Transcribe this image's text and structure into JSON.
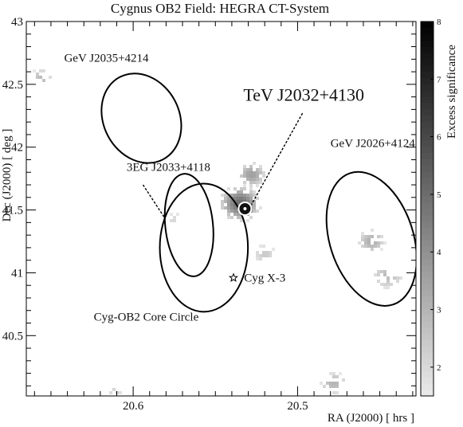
{
  "chart_data": {
    "type": "heatmap",
    "title": "Cygnus OB2 Field: HEGRA CT-System",
    "xlabel": "RA (J2000) [ hrs ]",
    "ylabel": "Dec (J2000) [ deg ]",
    "colorbar_label": "Excess significance",
    "xlim": [
      20.665,
      20.428
    ],
    "ylim": [
      40.02,
      43.0
    ],
    "x_ticks": [
      20.6,
      20.5
    ],
    "x_tick_labels": [
      "20.6",
      "20.5"
    ],
    "y_ticks": [
      40.5,
      41,
      41.5,
      42,
      42.5,
      43
    ],
    "y_tick_labels": [
      "40.5",
      "41",
      "41.5",
      "42",
      "42.5",
      "43"
    ],
    "colorbar_range": [
      1.5,
      8
    ],
    "colorbar_ticks": [
      2,
      3,
      4,
      5,
      6,
      7,
      8
    ],
    "colorbar_tick_labels": [
      "2",
      "3",
      "4",
      "5",
      "6",
      "7",
      "8"
    ],
    "grid": false,
    "colors": {
      "axes": "#000000",
      "background": "#ffffff",
      "ellipse": "#000000"
    },
    "hotspots": [
      {
        "ra": 20.532,
        "dec": 41.51,
        "sigma": 7.5,
        "spread": 0.04
      },
      {
        "ra": 20.535,
        "dec": 41.55,
        "sigma": 5.0,
        "spread": 0.1
      },
      {
        "ra": 20.528,
        "dec": 41.78,
        "sigma": 3.6,
        "spread": 0.08
      },
      {
        "ra": 20.455,
        "dec": 41.25,
        "sigma": 3.2,
        "spread": 0.08
      },
      {
        "ra": 20.445,
        "dec": 40.98,
        "sigma": 2.8,
        "spread": 0.1
      },
      {
        "ra": 20.478,
        "dec": 40.12,
        "sigma": 3.0,
        "spread": 0.08
      },
      {
        "ra": 20.656,
        "dec": 42.55,
        "sigma": 2.8,
        "spread": 0.07
      },
      {
        "ra": 20.575,
        "dec": 41.42,
        "sigma": 2.0,
        "spread": 0.08
      },
      {
        "ra": 20.52,
        "dec": 41.15,
        "sigma": 2.4,
        "spread": 0.08
      },
      {
        "ra": 20.611,
        "dec": 40.05,
        "sigma": 2.3,
        "spread": 0.05
      }
    ],
    "regions": [
      {
        "name": "GeV J2035+4214",
        "ra": 20.595,
        "dec": 42.23,
        "rx": 0.023,
        "ry": 0.37,
        "angle": -28
      },
      {
        "name": "3EG J2033+4118",
        "ra": 20.566,
        "dec": 41.38,
        "rx": 0.0145,
        "ry": 0.41,
        "angle": -6
      },
      {
        "name": "Cyg-OB2 Core Circle",
        "ra": 20.557,
        "dec": 41.2,
        "rx": 0.0268,
        "ry": 0.51,
        "angle": 0
      },
      {
        "name": "GeV J2026+4124",
        "ra": 20.455,
        "dec": 41.27,
        "rx": 0.0254,
        "ry": 0.55,
        "angle": -18
      }
    ],
    "sources": [
      {
        "name": "TeV J2032+4130",
        "ra": 20.532,
        "dec": 41.51,
        "marker": "circle"
      },
      {
        "name": "Cyg X-3",
        "ra": 20.539,
        "dec": 40.96,
        "marker": "star"
      }
    ],
    "annotations": [
      {
        "text": "GeV J2035+4214",
        "ra": 20.642,
        "dec": 42.68
      },
      {
        "text": "TeV J2032+4130",
        "ra": 20.533,
        "dec": 42.37
      },
      {
        "text": "GeV J2026+4124",
        "ra": 20.48,
        "dec": 42.0
      },
      {
        "text": "3EG J2033+4118",
        "ra": 20.604,
        "dec": 41.81
      },
      {
        "text": "Cyg X-3",
        "ra": 20.535,
        "dec": 40.96
      },
      {
        "text": "Cyg-OB2 Core Circle",
        "ra": 20.624,
        "dec": 40.62
      }
    ]
  }
}
